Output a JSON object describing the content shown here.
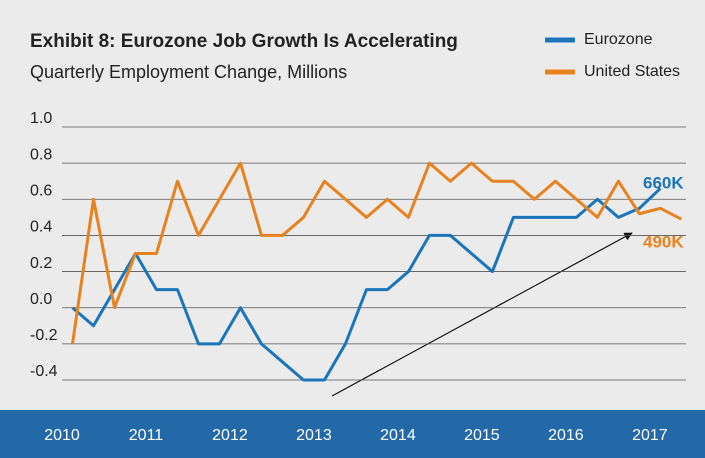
{
  "chart_data": {
    "type": "line",
    "title": "Exhibit 8: Eurozone Job Growth Is Accelerating",
    "subtitle": "Quarterly Employment Change, Millions",
    "x": [
      2010.125,
      2010.375,
      2010.625,
      2010.875,
      2011.125,
      2011.375,
      2011.625,
      2011.875,
      2012.125,
      2012.375,
      2012.625,
      2012.875,
      2013.125,
      2013.375,
      2013.625,
      2013.875,
      2014.125,
      2014.375,
      2014.625,
      2014.875,
      2015.125,
      2015.375,
      2015.625,
      2015.875,
      2016.125,
      2016.375,
      2016.625,
      2016.875,
      2017.125,
      2017.375
    ],
    "series": [
      {
        "name": "Eurozone",
        "color": "#1b75bb",
        "values": [
          0.0,
          -0.1,
          0.1,
          0.3,
          0.1,
          0.1,
          -0.2,
          -0.2,
          0.0,
          -0.2,
          -0.3,
          -0.4,
          -0.4,
          -0.2,
          0.1,
          0.1,
          0.2,
          0.4,
          0.4,
          0.3,
          0.2,
          0.5,
          0.5,
          0.5,
          0.5,
          0.6,
          0.5,
          0.55,
          0.66,
          null
        ]
      },
      {
        "name": "United States",
        "color": "#e8821e",
        "values": [
          -0.2,
          0.6,
          0.0,
          0.3,
          0.3,
          0.7,
          0.4,
          0.6,
          0.8,
          0.4,
          0.4,
          0.5,
          0.7,
          0.6,
          0.5,
          0.6,
          0.5,
          0.8,
          0.7,
          0.8,
          0.7,
          0.7,
          0.6,
          0.7,
          0.6,
          0.5,
          0.7,
          0.52,
          0.55,
          0.49
        ]
      }
    ],
    "annotations": [
      "660K",
      "490K"
    ],
    "xlim": [
      2010,
      2017.43
    ],
    "xticks": [
      2010,
      2011,
      2012,
      2013,
      2014,
      2015,
      2016,
      2017
    ],
    "ylim": [
      -0.4,
      1.0
    ],
    "yticks": [
      {
        "value": 1,
        "label": "1.0"
      },
      0.8,
      0.6,
      0.4,
      0.2,
      {
        "value": 0,
        "label": "0.0"
      },
      -0.2,
      -0.4
    ],
    "grid": true,
    "legend": "upper right"
  }
}
